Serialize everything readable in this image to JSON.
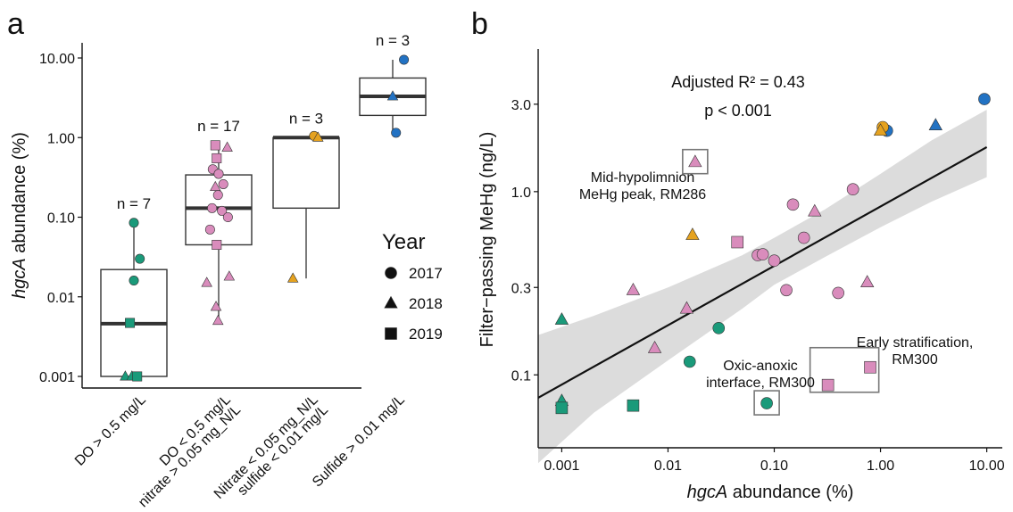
{
  "figure": {
    "panel_a_letter": "a",
    "panel_b_letter": "b"
  },
  "colors": {
    "DO > 0.5 mg/L": "#1a9a7a",
    "DO < 0.5 mg/L nitrate > 0.05 mg_N/L": "#d98cbc",
    "Nitrate < 0.05 mg_N/L sulfide < 0.01 mg/L": "#e5a21f",
    "Sulfide > 0.01 mg/L": "#2272c3",
    "box": "#222222",
    "regression_line": "#111111",
    "ci_band": "#dcdcdc"
  },
  "legend": {
    "title": "Year",
    "items": [
      {
        "label": "2017",
        "shape": "circle"
      },
      {
        "label": "2018",
        "shape": "triangle"
      },
      {
        "label": "2019",
        "shape": "square"
      }
    ]
  },
  "chart_data": [
    {
      "type": "box",
      "panel": "a",
      "ylabel_italic": "hgcA",
      "ylabel_rest": " abundance (%)",
      "yscale": "log",
      "ylim": [
        0.001,
        10
      ],
      "yticks": [
        0.001,
        0.01,
        0.1,
        1,
        10
      ],
      "yticklabels": [
        "0.001",
        "0.01",
        "0.10",
        "1.00",
        "10.00"
      ],
      "categories": [
        {
          "label_lines": [
            "DO > 0.5 mg/L"
          ],
          "n_label": "n = 7",
          "color_key": "DO > 0.5 mg/L",
          "box": {
            "q1": 0.001,
            "median": 0.0046,
            "q3": 0.022,
            "whisker_low": 0.001,
            "whisker_high": 0.085
          },
          "points": [
            {
              "y": 0.085,
              "shape": "circle",
              "jit": 0.0
            },
            {
              "y": 0.03,
              "shape": "circle",
              "jit": 0.09
            },
            {
              "y": 0.016,
              "shape": "circle",
              "jit": 0.0
            },
            {
              "y": 0.0047,
              "shape": "square",
              "jit": -0.06
            },
            {
              "y": 0.001,
              "shape": "triangle",
              "jit": -0.13
            },
            {
              "y": 0.001,
              "shape": "triangle",
              "jit": -0.03
            },
            {
              "y": 0.001,
              "shape": "square",
              "jit": 0.05
            }
          ]
        },
        {
          "label_lines": [
            "DO < 0.5 mg/L",
            "nitrate > 0.05 mg_N/L"
          ],
          "n_label": "n = 17",
          "color_key": "DO < 0.5 mg/L nitrate > 0.05 mg_N/L",
          "box": {
            "q1": 0.045,
            "median": 0.13,
            "q3": 0.34,
            "whisker_low": 0.005,
            "whisker_high": 0.8
          },
          "points": [
            {
              "y": 0.8,
              "shape": "square",
              "jit": -0.05
            },
            {
              "y": 0.75,
              "shape": "triangle",
              "jit": 0.13
            },
            {
              "y": 0.55,
              "shape": "square",
              "jit": -0.03
            },
            {
              "y": 0.4,
              "shape": "circle",
              "jit": -0.09
            },
            {
              "y": 0.35,
              "shape": "circle",
              "jit": 0.0
            },
            {
              "y": 0.24,
              "shape": "triangle",
              "jit": -0.05
            },
            {
              "y": 0.26,
              "shape": "circle",
              "jit": 0.07
            },
            {
              "y": 0.19,
              "shape": "circle",
              "jit": -0.01
            },
            {
              "y": 0.13,
              "shape": "circle",
              "jit": -0.1
            },
            {
              "y": 0.12,
              "shape": "circle",
              "jit": 0.05
            },
            {
              "y": 0.1,
              "shape": "circle",
              "jit": 0.14
            },
            {
              "y": 0.07,
              "shape": "circle",
              "jit": -0.13
            },
            {
              "y": 0.045,
              "shape": "square",
              "jit": -0.03
            },
            {
              "y": 0.018,
              "shape": "triangle",
              "jit": 0.16
            },
            {
              "y": 0.015,
              "shape": "triangle",
              "jit": -0.18
            },
            {
              "y": 0.0075,
              "shape": "triangle",
              "jit": -0.04
            },
            {
              "y": 0.005,
              "shape": "triangle",
              "jit": -0.01
            }
          ]
        },
        {
          "label_lines": [
            "Nitrate < 0.05 mg_N/L",
            "sulfide < 0.01 mg/L"
          ],
          "n_label": "n = 3",
          "color_key": "Nitrate < 0.05 mg_N/L sulfide < 0.01 mg/L",
          "box": {
            "q1": 0.13,
            "median": 1.0,
            "q3": 1.0,
            "whisker_low": 0.017,
            "whisker_high": 1.0
          },
          "points": [
            {
              "y": 1.05,
              "shape": "circle",
              "jit": 0.12
            },
            {
              "y": 1.0,
              "shape": "triangle",
              "jit": 0.18
            },
            {
              "y": 0.017,
              "shape": "triangle",
              "jit": -0.2
            }
          ]
        },
        {
          "label_lines": [
            "Sulfide > 0.01 mg/L"
          ],
          "n_label": "n = 3",
          "color_key": "Sulfide > 0.01 mg/L",
          "box": {
            "q1": 1.9,
            "median": 3.3,
            "q3": 5.6,
            "whisker_low": 1.15,
            "whisker_high": 9.5
          },
          "points": [
            {
              "y": 9.5,
              "shape": "circle",
              "jit": 0.17
            },
            {
              "y": 3.3,
              "shape": "triangle",
              "jit": 0.0
            },
            {
              "y": 1.15,
              "shape": "circle",
              "jit": 0.05
            }
          ]
        }
      ]
    },
    {
      "type": "scatter",
      "panel": "b",
      "xlabel_italic": "hgcA",
      "xlabel_rest": " abundance (%)",
      "ylabel": "Filter−passing MeHg (ng/L)",
      "xscale": "log",
      "yscale": "log",
      "xlim": [
        0.0006,
        14
      ],
      "ylim": [
        0.04,
        6
      ],
      "xticks": [
        0.001,
        0.01,
        0.1,
        1,
        10
      ],
      "xticklabels": [
        "0.001",
        "0.01",
        "0.10",
        "1.00",
        "10.00"
      ],
      "yticks": [
        0.1,
        0.3,
        1,
        3
      ],
      "yticklabels": [
        "0.1",
        "0.3",
        "1.0",
        "3.0"
      ],
      "fit": {
        "x": [
          0.0006,
          10
        ],
        "y": [
          0.075,
          1.75
        ]
      },
      "ci_band": {
        "x": [
          0.0006,
          0.002,
          0.01,
          0.05,
          0.1,
          0.3,
          1,
          3,
          10
        ],
        "lower": [
          0.033,
          0.062,
          0.12,
          0.23,
          0.31,
          0.44,
          0.64,
          0.88,
          1.2
        ],
        "upper": [
          0.165,
          0.21,
          0.3,
          0.45,
          0.56,
          0.8,
          1.25,
          1.9,
          2.8
        ]
      },
      "stats": {
        "r2_text": "Adjusted R² = 0.43",
        "p_text": "p < 0.001"
      },
      "annotations": [
        {
          "lines": [
            "Mid-hypolimnion",
            "MeHg peak, RM286"
          ]
        },
        {
          "lines": [
            "Oxic-anoxic",
            "interface, RM300"
          ]
        },
        {
          "lines": [
            "Early stratification,",
            "RM300"
          ]
        }
      ],
      "points": [
        {
          "x": 9.5,
          "y": 3.2,
          "shape": "circle",
          "group": 3
        },
        {
          "x": 1.15,
          "y": 2.15,
          "shape": "circle",
          "group": 3
        },
        {
          "x": 3.3,
          "y": 2.3,
          "shape": "triangle",
          "group": 3
        },
        {
          "x": 1.05,
          "y": 2.25,
          "shape": "circle",
          "group": 2
        },
        {
          "x": 1.0,
          "y": 2.15,
          "shape": "triangle",
          "group": 2
        },
        {
          "x": 0.017,
          "y": 0.58,
          "shape": "triangle",
          "group": 2
        },
        {
          "x": 0.001,
          "y": 0.2,
          "shape": "triangle",
          "group": 0
        },
        {
          "x": 0.001,
          "y": 0.072,
          "shape": "triangle",
          "group": 0
        },
        {
          "x": 0.001,
          "y": 0.066,
          "shape": "square",
          "group": 0
        },
        {
          "x": 0.0047,
          "y": 0.068,
          "shape": "square",
          "group": 0
        },
        {
          "x": 0.03,
          "y": 0.18,
          "shape": "circle",
          "group": 0
        },
        {
          "x": 0.016,
          "y": 0.118,
          "shape": "circle",
          "group": 0
        },
        {
          "x": 0.085,
          "y": 0.07,
          "shape": "circle",
          "group": 0
        },
        {
          "x": 0.018,
          "y": 1.45,
          "shape": "triangle",
          "group": 1
        },
        {
          "x": 0.55,
          "y": 1.03,
          "shape": "circle",
          "group": 1
        },
        {
          "x": 0.15,
          "y": 0.85,
          "shape": "circle",
          "group": 1
        },
        {
          "x": 0.24,
          "y": 0.78,
          "shape": "triangle",
          "group": 1
        },
        {
          "x": 0.045,
          "y": 0.53,
          "shape": "square",
          "group": 1
        },
        {
          "x": 0.19,
          "y": 0.56,
          "shape": "circle",
          "group": 1
        },
        {
          "x": 0.07,
          "y": 0.45,
          "shape": "circle",
          "group": 1
        },
        {
          "x": 0.078,
          "y": 0.455,
          "shape": "circle",
          "group": 1
        },
        {
          "x": 0.1,
          "y": 0.42,
          "shape": "circle",
          "group": 1
        },
        {
          "x": 0.13,
          "y": 0.29,
          "shape": "circle",
          "group": 1
        },
        {
          "x": 0.0047,
          "y": 0.29,
          "shape": "triangle",
          "group": 1
        },
        {
          "x": 0.015,
          "y": 0.23,
          "shape": "triangle",
          "group": 1
        },
        {
          "x": 0.0075,
          "y": 0.14,
          "shape": "triangle",
          "group": 1
        },
        {
          "x": 0.4,
          "y": 0.28,
          "shape": "circle",
          "group": 1
        },
        {
          "x": 0.75,
          "y": 0.32,
          "shape": "triangle",
          "group": 1
        },
        {
          "x": 0.8,
          "y": 0.11,
          "shape": "square",
          "group": 1
        },
        {
          "x": 0.32,
          "y": 0.088,
          "shape": "square",
          "group": 1
        }
      ]
    }
  ]
}
